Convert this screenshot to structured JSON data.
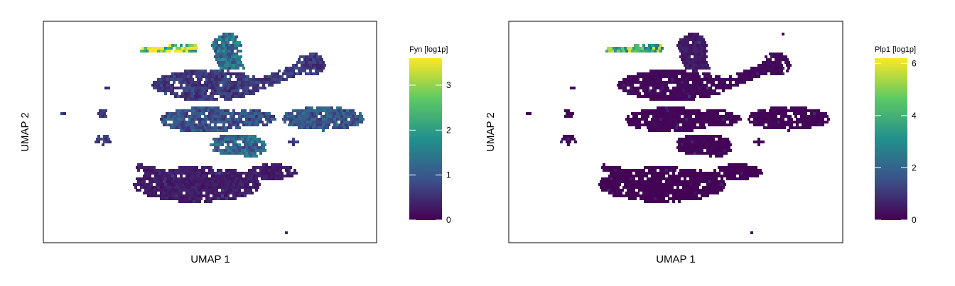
{
  "chart_data": [
    {
      "type": "heatmap",
      "subtype": "hexbin-umap",
      "gene": "Fyn",
      "xlabel": "UMAP 1",
      "ylabel": "UMAP 2",
      "colorbar": {
        "title": "Fyn [log1p]",
        "range": [
          0,
          3.6
        ],
        "ticks": [
          0,
          1,
          2,
          3
        ],
        "tick_labels": [
          "0",
          "1",
          "2",
          "3"
        ],
        "colormap": "viridis",
        "colors": [
          "#440154",
          "#3b528b",
          "#21908d",
          "#5dc963",
          "#fde725"
        ]
      },
      "axis_ticks_shown": false,
      "grid": false,
      "regions": [
        {
          "name": "top-left streak",
          "mean_value": 3.2
        },
        {
          "name": "upper stalk",
          "mean_value": 1.3
        },
        {
          "name": "upper-middle cluster",
          "mean_value": 0.6
        },
        {
          "name": "central band",
          "mean_value": 0.9
        },
        {
          "name": "right lobe",
          "mean_value": 1.0
        },
        {
          "name": "lower-middle cluster",
          "mean_value": 1.2
        },
        {
          "name": "lower large cluster",
          "mean_value": 0.3
        },
        {
          "name": "left small clusters",
          "mean_value": 0.6
        }
      ]
    },
    {
      "type": "heatmap",
      "subtype": "hexbin-umap",
      "gene": "Plp1",
      "xlabel": "UMAP 1",
      "ylabel": "UMAP 2",
      "colorbar": {
        "title": "Plp1 [log1p]",
        "range": [
          0,
          6.2
        ],
        "ticks": [
          0,
          2,
          4,
          6
        ],
        "tick_labels": [
          "0",
          "2",
          "4",
          "6"
        ],
        "colormap": "viridis",
        "colors": [
          "#440154",
          "#3b528b",
          "#21908d",
          "#5dc963",
          "#fde725"
        ]
      },
      "axis_ticks_shown": false,
      "grid": false,
      "regions": [
        {
          "name": "top-left streak",
          "mean_value": 4.2
        },
        {
          "name": "upper stalk",
          "mean_value": 0.5
        },
        {
          "name": "upper-middle cluster",
          "mean_value": 0.15
        },
        {
          "name": "central band",
          "mean_value": 0.1
        },
        {
          "name": "right lobe",
          "mean_value": 0.1
        },
        {
          "name": "lower-middle cluster",
          "mean_value": 0.1
        },
        {
          "name": "lower large cluster",
          "mean_value": 0.05
        },
        {
          "name": "left small clusters",
          "mean_value": 0.1
        }
      ]
    }
  ]
}
